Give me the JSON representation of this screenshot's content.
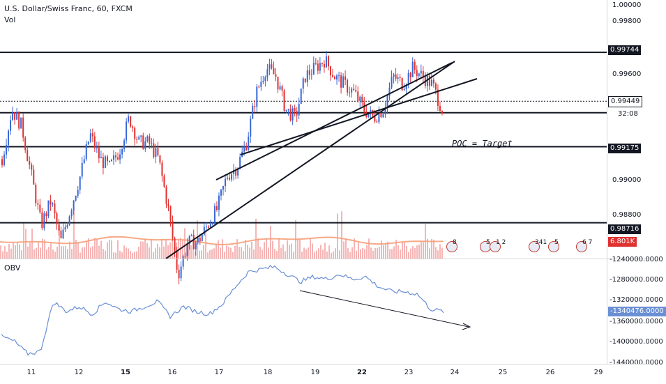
{
  "legend": {
    "title": "U.S. Dollar/Swiss Franc, 60, FXCM",
    "vol": "Vol"
  },
  "annotation": {
    "target": "POC = Target"
  },
  "obv": {
    "title": "OBV",
    "current": "-1340476.0000",
    "axis_labels": [
      "-1240000.0000",
      "-1280000.0000",
      "-1320000.0000",
      "-1360000.0000",
      "-1400000.0000",
      "-1440000.0000"
    ]
  },
  "price_axis": {
    "labels": [
      "1.00000",
      "0.99800",
      "0.99600",
      "0.99000",
      "0.98800"
    ],
    "tags": {
      "resistance": "0.99744",
      "current": "0.99449",
      "countdown": "32:08",
      "poc": "0.99175",
      "support": "0.98716",
      "volume": "6.801K"
    }
  },
  "time_axis": {
    "labels": [
      {
        "text": "11",
        "bold": false
      },
      {
        "text": "12",
        "bold": false
      },
      {
        "text": "15",
        "bold": true
      },
      {
        "text": "16",
        "bold": false
      },
      {
        "text": "17",
        "bold": false
      },
      {
        "text": "18",
        "bold": false
      },
      {
        "text": "19",
        "bold": false
      },
      {
        "text": "22",
        "bold": true
      },
      {
        "text": "23",
        "bold": false
      },
      {
        "text": "24",
        "bold": false
      },
      {
        "text": "25",
        "bold": false
      },
      {
        "text": "26",
        "bold": false
      },
      {
        "text": "29",
        "bold": false
      }
    ]
  },
  "events": [
    "8",
    "5",
    "1 2",
    "341",
    "5",
    "6 7"
  ],
  "colors": {
    "up": "#3867d6",
    "down": "#e03131",
    "volume": "#f4a3a3",
    "volume_ma": "#f6a07a",
    "obv_line": "#6a8fd4",
    "volume_tag": "#e03131",
    "dark_tag": "#131722"
  },
  "chart_data": {
    "type": "candlestick",
    "title": "U.S. Dollar/Swiss Franc, 60, FXCM",
    "series": [
      {
        "name": "Vol"
      },
      {
        "name": "OBV"
      }
    ],
    "price_levels": [
      0.99744,
      0.99449,
      0.99175,
      0.98716
    ],
    "ylim": [
      0.985,
      1.0006
    ],
    "obv_ylim": [
      -1445000,
      -1235000
    ],
    "price_path": [
      0.991,
      0.994,
      0.993,
      0.99,
      0.987,
      0.9885,
      0.986,
      0.988,
      0.99,
      0.9925,
      0.991,
      0.9905,
      0.9915,
      0.9935,
      0.992,
      0.992,
      0.991,
      0.988,
      0.984,
      0.986,
      0.986,
      0.987,
      0.988,
      0.99,
      0.9905,
      0.992,
      0.995,
      0.9965,
      0.996,
      0.994,
      0.9935,
      0.996,
      0.9965,
      0.997,
      0.996,
      0.9955,
      0.995,
      0.994,
      0.9935,
      0.994,
      0.996,
      0.9955,
      0.9965,
      0.996,
      0.9955,
      0.994
    ],
    "obv_path": [
      -1390000,
      -1400000,
      -1425000,
      -1420000,
      -1320000,
      -1340000,
      -1330000,
      -1345000,
      -1320000,
      -1335000,
      -1340000,
      -1330000,
      -1320000,
      -1350000,
      -1330000,
      -1340000,
      -1345000,
      -1325000,
      -1290000,
      -1260000,
      -1255000,
      -1250000,
      -1265000,
      -1280000,
      -1270000,
      -1275000,
      -1265000,
      -1275000,
      -1270000,
      -1290000,
      -1300000,
      -1300000,
      -1305000,
      -1335000,
      -1340000
    ]
  }
}
